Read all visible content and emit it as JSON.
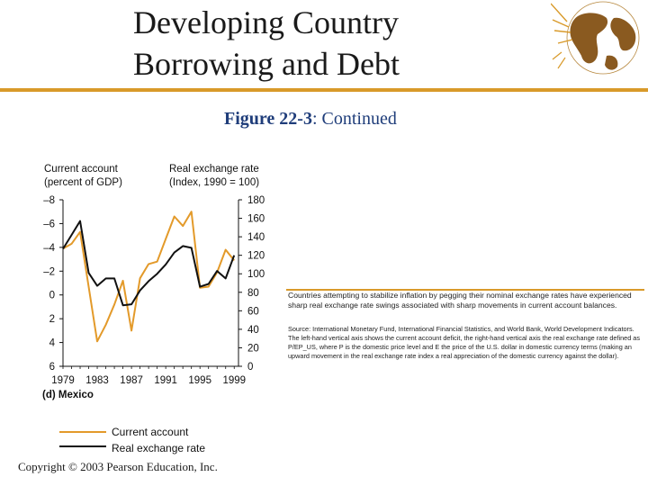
{
  "slide": {
    "title_line1": "Developing Country",
    "title_line2": "Borrowing and Debt",
    "figure_label": "Figure 22-3",
    "figure_rest": ": Continued",
    "copyright": "Copyright © 2003 Pearson Education, Inc.",
    "caption": "Countries attempting to stabilize inflation by pegging their nominal exchange rates have experienced sharp real exchange rate swings associated with sharp movements in current account balances.",
    "source": "Source: International Monetary Fund, International Financial Statistics, and World Bank, World Development Indicators. The left-hand vertical axis shows the current account deficit, the right-hand vertical axis the real exchange rate defined as P/EP_US, where P is the domestic price level and E the price of the U.S. dollar in domestic currency terms (making an upward movement in the real exchange rate index a real appreciation of the domestic currency against the dollar)."
  },
  "colors": {
    "accent": "#d99a2a",
    "current_account": "#e39a2a",
    "real_exchange_rate": "#111111"
  },
  "chart_data": {
    "type": "line",
    "panel": "(d) Mexico",
    "left_axis_label_line1": "Current account",
    "left_axis_label_line2": "(percent of GDP)",
    "right_axis_label_line1": "Real exchange rate",
    "right_axis_label_line2": "(Index, 1990 = 100)",
    "x_ticks": [
      1979,
      1983,
      1987,
      1991,
      1995,
      1999
    ],
    "x_range": [
      1979,
      1999.5
    ],
    "left_ticks": [
      -8,
      -6,
      -4,
      -2,
      0,
      2,
      4,
      6
    ],
    "left_tick_labels": [
      "–8",
      "–6",
      "–4",
      "–2",
      "0",
      "2",
      "4",
      "6"
    ],
    "left_range": [
      -8,
      6
    ],
    "right_ticks": [
      180,
      160,
      140,
      120,
      100,
      80,
      60,
      40,
      20,
      0
    ],
    "right_range": [
      0,
      180
    ],
    "legend": {
      "current_account": "Current account",
      "real_exchange_rate": "Real exchange rate"
    },
    "series": [
      {
        "name": "Current account",
        "axis": "left",
        "x": [
          1979,
          1980,
          1981,
          1982,
          1983,
          1984,
          1985,
          1986,
          1987,
          1988,
          1989,
          1990,
          1991,
          1992,
          1993,
          1994,
          1995,
          1996,
          1997,
          1998,
          1999
        ],
        "values": [
          -3.9,
          -4.3,
          -5.3,
          -0.7,
          3.9,
          2.5,
          0.8,
          -1.2,
          3.0,
          -1.4,
          -2.6,
          -2.8,
          -4.7,
          -6.6,
          -5.8,
          -7.0,
          -0.6,
          -0.7,
          -1.9,
          -3.8,
          -2.9
        ]
      },
      {
        "name": "Real exchange rate",
        "axis": "right",
        "x": [
          1979,
          1980,
          1981,
          1982,
          1983,
          1984,
          1985,
          1986,
          1987,
          1988,
          1989,
          1990,
          1991,
          1992,
          1993,
          1994,
          1995,
          1996,
          1997,
          1998,
          1999
        ],
        "values": [
          127,
          142,
          157,
          101,
          87,
          95,
          95,
          66,
          67,
          82,
          92,
          100,
          110,
          123,
          130,
          128,
          86,
          89,
          103,
          95,
          120
        ]
      }
    ]
  }
}
